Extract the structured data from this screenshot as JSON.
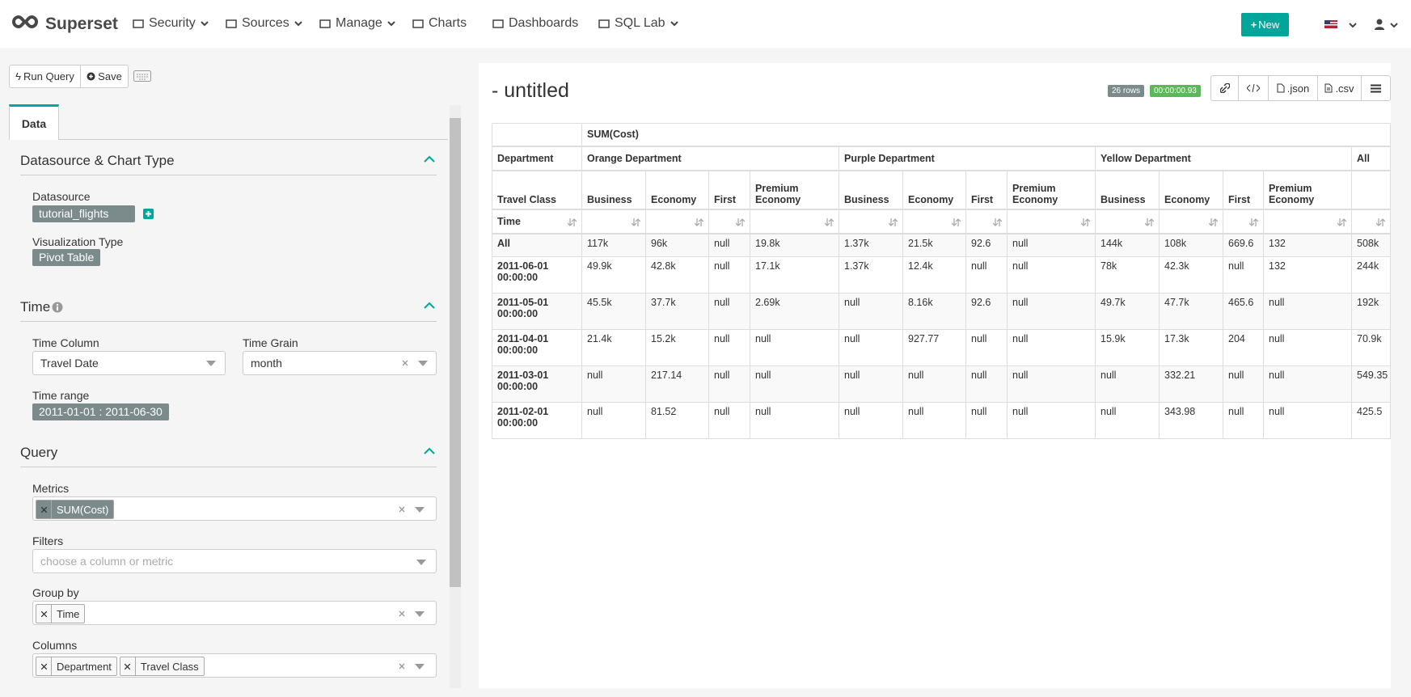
{
  "nav": {
    "brand": "Superset",
    "items": [
      "Security",
      "Sources",
      "Manage",
      "Charts",
      "Dashboards",
      "SQL Lab"
    ],
    "new_button": "New"
  },
  "toolbar": {
    "run_query": "Run Query",
    "save": "Save"
  },
  "panel": {
    "tab": "Data",
    "datasource_section": {
      "title": "Datasource & Chart Type",
      "datasource_label": "Datasource",
      "datasource": "tutorial_flights",
      "viz_label": "Visualization Type",
      "viz": "Pivot Table"
    },
    "time_section": {
      "title": "Time",
      "time_column_label": "Time Column",
      "time_column": "Travel Date",
      "time_grain_label": "Time Grain",
      "time_grain": "month",
      "time_range_label": "Time range",
      "time_range": "2011-01-01 : 2011-06-30"
    },
    "query_section": {
      "title": "Query",
      "metrics_label": "Metrics",
      "metrics": [
        "SUM(Cost)"
      ],
      "filters_label": "Filters",
      "filters_placeholder": "choose a column or metric",
      "groupby_label": "Group by",
      "groupby": [
        "Time"
      ],
      "columns_label": "Columns",
      "columns": [
        "Department",
        "Travel Class"
      ]
    }
  },
  "result": {
    "title": "- untitled",
    "row_count": "26 rows",
    "duration": "00:00:00.93",
    "json_button": ".json",
    "csv_button": ".csv"
  },
  "table": {
    "metric": "SUM(Cost)",
    "column_labels": [
      "Department",
      "Travel Class"
    ],
    "row_label": "Time",
    "total_label": "All",
    "departments": [
      {
        "name": "Orange Department",
        "classes": [
          "Business",
          "Economy",
          "First",
          "Premium Economy"
        ]
      },
      {
        "name": "Purple Department",
        "classes": [
          "Business",
          "Economy",
          "First",
          "Premium Economy"
        ]
      },
      {
        "name": "Yellow Department",
        "classes": [
          "Business",
          "Economy",
          "First",
          "Premium Economy"
        ]
      }
    ],
    "rows": [
      {
        "time": "All",
        "values": [
          "117k",
          "96k",
          "null",
          "19.8k",
          "1.37k",
          "21.5k",
          "92.6",
          "null",
          "144k",
          "108k",
          "669.6",
          "132",
          "508k"
        ]
      },
      {
        "time": "2011-06-01 00:00:00",
        "values": [
          "49.9k",
          "42.8k",
          "null",
          "17.1k",
          "1.37k",
          "12.4k",
          "null",
          "null",
          "78k",
          "42.3k",
          "null",
          "132",
          "244k"
        ]
      },
      {
        "time": "2011-05-01 00:00:00",
        "values": [
          "45.5k",
          "37.7k",
          "null",
          "2.69k",
          "null",
          "8.16k",
          "92.6",
          "null",
          "49.7k",
          "47.7k",
          "465.6",
          "null",
          "192k"
        ]
      },
      {
        "time": "2011-04-01 00:00:00",
        "values": [
          "21.4k",
          "15.2k",
          "null",
          "null",
          "null",
          "927.77",
          "null",
          "null",
          "15.9k",
          "17.3k",
          "204",
          "null",
          "70.9k"
        ]
      },
      {
        "time": "2011-03-01 00:00:00",
        "values": [
          "null",
          "217.14",
          "null",
          "null",
          "null",
          "null",
          "null",
          "null",
          "null",
          "332.21",
          "null",
          "null",
          "549.35"
        ]
      },
      {
        "time": "2011-02-01 00:00:00",
        "values": [
          "null",
          "81.52",
          "null",
          "null",
          "null",
          "null",
          "null",
          "null",
          "null",
          "343.98",
          "null",
          "null",
          "425.5"
        ]
      }
    ]
  }
}
